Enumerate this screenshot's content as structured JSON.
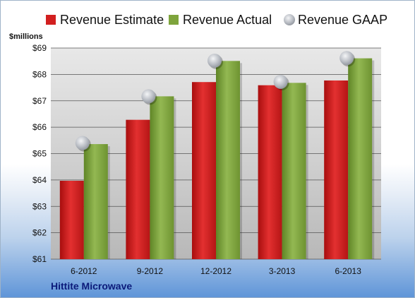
{
  "chart_data": {
    "type": "bar",
    "ylabel": "$millions",
    "ylim": [
      61,
      69
    ],
    "y_ticks": [
      "$61",
      "$62",
      "$63",
      "$64",
      "$65",
      "$66",
      "$67",
      "$68",
      "$69"
    ],
    "categories": [
      "6-2012",
      "9-2012",
      "12-2012",
      "3-2013",
      "6-2013"
    ],
    "series": [
      {
        "name": "Revenue Estimate",
        "type": "bar",
        "color": "#d21f1f",
        "values": [
          63.97,
          66.28,
          67.71,
          67.59,
          67.77
        ]
      },
      {
        "name": "Revenue Actual",
        "type": "bar",
        "color": "#7ea43c",
        "values": [
          65.36,
          67.17,
          68.51,
          67.68,
          68.61
        ]
      },
      {
        "name": "Revenue GAAP",
        "type": "scatter",
        "color": "#c8cbd0",
        "values": [
          65.4,
          67.17,
          68.52,
          67.72,
          68.62
        ]
      }
    ],
    "legend_position": "top",
    "grid": true
  },
  "footer": {
    "company": "Hittite Microwave"
  }
}
